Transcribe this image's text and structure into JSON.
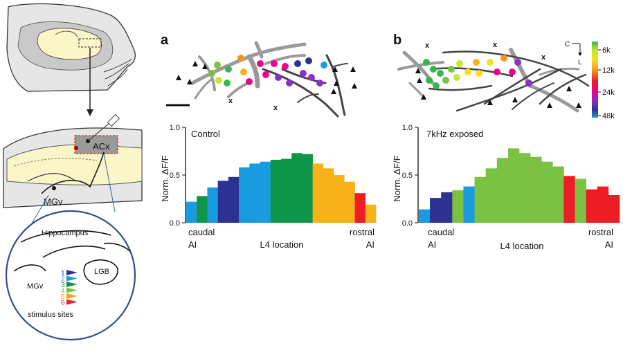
{
  "schematic": {
    "acx_label": "ACx",
    "mgv_label": "MGv",
    "inset": {
      "hippocampus_label": "Hippocampus",
      "lgb_label": "LGB",
      "mgv_label": "MGv",
      "stimulus_label": "stimulus sites",
      "site_numbers": [
        "1",
        "2",
        "3",
        "4",
        "5",
        "6"
      ],
      "site_colors": [
        "#2e3192",
        "#1a9be0",
        "#0e9648",
        "#7cc242",
        "#f7a11a",
        "#ee1c25"
      ]
    }
  },
  "panel_a": {
    "letter": "a",
    "x_marks": [
      "x",
      "x"
    ]
  },
  "panel_b": {
    "letter": "b",
    "x_marks": [
      "x",
      "x",
      "x"
    ],
    "compass": {
      "c": "C",
      "l": "L"
    },
    "colorbar": {
      "ticks": [
        "6k",
        "12k",
        "24k",
        "48k"
      ],
      "colors": [
        "#39b54a",
        "#c8e632",
        "#f7e01a",
        "#f7941d",
        "#ee1c25",
        "#ec008c",
        "#8b2fc9",
        "#2e3192",
        "#1a9be0"
      ]
    }
  },
  "chart_data": [
    {
      "type": "bar",
      "title": "Control",
      "xlabel": "L4 location",
      "ylabel": "Norm. ΔF/F",
      "ylim": [
        0,
        1.0
      ],
      "yticks": [
        "0.0",
        "0.5",
        "1.0"
      ],
      "x_left_label": [
        "caudal",
        "AI"
      ],
      "x_right_label": [
        "rostral",
        "AI"
      ],
      "values": [
        0.22,
        0.28,
        0.37,
        0.44,
        0.48,
        0.58,
        0.62,
        0.64,
        0.66,
        0.67,
        0.73,
        0.72,
        0.62,
        0.57,
        0.5,
        0.43,
        0.31,
        0.19
      ],
      "colors": [
        "#1a9be0",
        "#0e9648",
        "#1a9be0",
        "#2e3192",
        "#2e3192",
        "#1a9be0",
        "#1a9be0",
        "#1a9be0",
        "#0e9648",
        "#0e9648",
        "#0e9648",
        "#0e9648",
        "#f7b21a",
        "#f7b21a",
        "#f7b21a",
        "#f7b21a",
        "#ee1c25",
        "#f7b21a"
      ]
    },
    {
      "type": "bar",
      "title": "7kHz exposed",
      "xlabel": "L4 location",
      "ylabel": "Norm. ΔF/F",
      "ylim": [
        0,
        1.0
      ],
      "yticks": [
        "0.0",
        "0.5",
        "1.0"
      ],
      "x_left_label": [
        "caudal",
        "AI"
      ],
      "x_right_label": [
        "rostral",
        "AI"
      ],
      "values": [
        0.14,
        0.26,
        0.32,
        0.34,
        0.38,
        0.48,
        0.57,
        0.68,
        0.78,
        0.73,
        0.69,
        0.64,
        0.59,
        0.49,
        0.46,
        0.35,
        0.38,
        0.29
      ],
      "colors": [
        "#1a9be0",
        "#2e3192",
        "#2e3192",
        "#7cc242",
        "#1a9be0",
        "#7cc242",
        "#7cc242",
        "#7cc242",
        "#7cc242",
        "#7cc242",
        "#7cc242",
        "#7cc242",
        "#7cc242",
        "#ee1c25",
        "#7cc242",
        "#ee1c25",
        "#ee1c25",
        "#ee1c25"
      ]
    }
  ]
}
